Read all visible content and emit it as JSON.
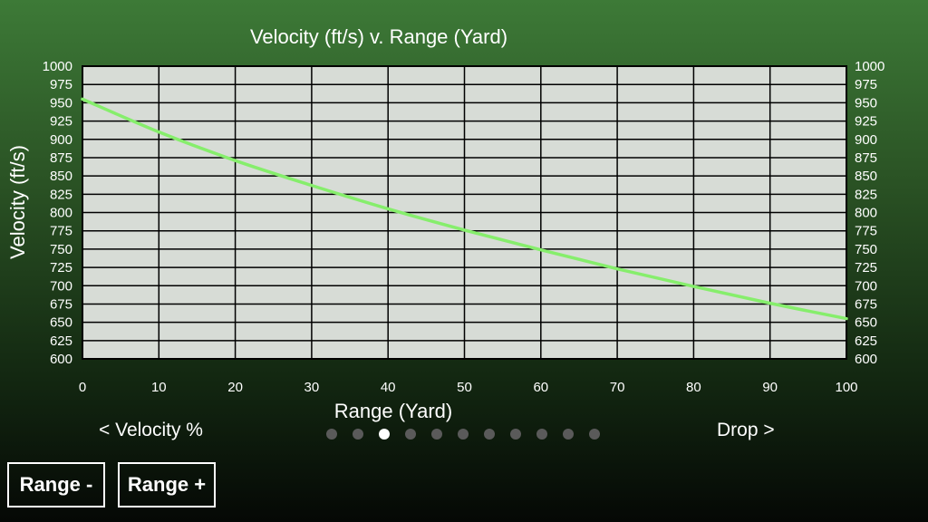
{
  "chart_data": {
    "type": "line",
    "title": "Velocity (ft/s) v. Range (Yard)",
    "xlabel": "Range (Yard)",
    "ylabel": "Velocity (ft/s)",
    "xlim": [
      0,
      100
    ],
    "ylim": [
      600,
      1000
    ],
    "x_ticks": [
      0,
      10,
      20,
      30,
      40,
      50,
      60,
      70,
      80,
      90,
      100
    ],
    "y_ticks": [
      600,
      625,
      650,
      675,
      700,
      725,
      750,
      775,
      800,
      825,
      850,
      875,
      900,
      925,
      950,
      975,
      1000
    ],
    "grid": true,
    "line_color": "#86ee6c",
    "plot_background": "#d7dcd6",
    "series": [
      {
        "x": [
          0,
          10,
          20,
          30,
          40,
          50,
          60,
          70,
          80,
          90,
          100
        ],
        "values": [
          955,
          910,
          871,
          837,
          805,
          776,
          749,
          723,
          699,
          676,
          655
        ]
      }
    ]
  },
  "navigation": {
    "prev_label": "< Velocity %",
    "next_label": "Drop >",
    "page_count": 11,
    "active_page": 3
  },
  "buttons": {
    "range_minus": "Range -",
    "range_plus": "Range +"
  }
}
